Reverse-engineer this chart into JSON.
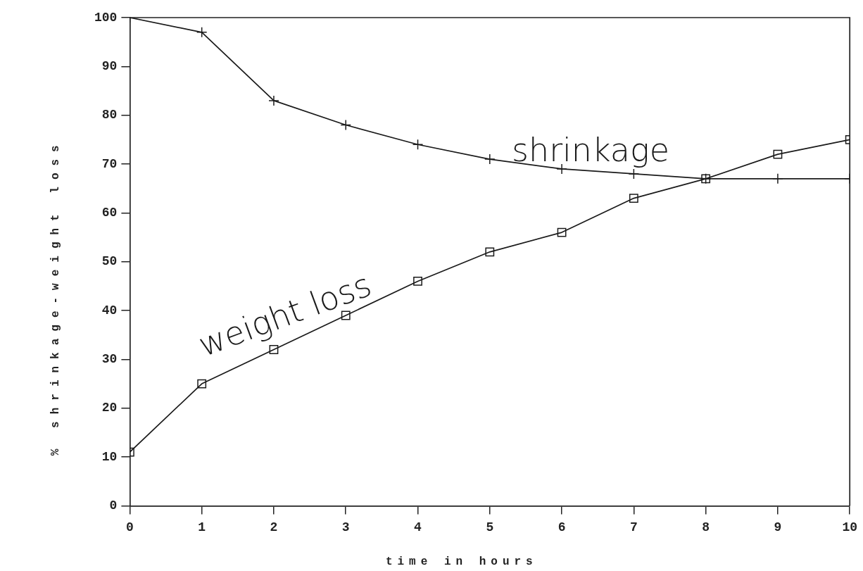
{
  "chart_data": {
    "type": "line",
    "xlabel": "time in hours",
    "ylabel": "% shrinkage-weight loss",
    "x": [
      0,
      1,
      2,
      3,
      4,
      5,
      6,
      7,
      8,
      9,
      10
    ],
    "series": [
      {
        "name": "shrinkage",
        "color": "#1a1a1a",
        "marker": "cross",
        "values": [
          100,
          97,
          83,
          78,
          74,
          71,
          69,
          68,
          67,
          67,
          67
        ]
      },
      {
        "name": "weight loss",
        "color": "#1a1a1a",
        "marker": "square",
        "values": [
          11,
          25,
          32,
          39,
          46,
          52,
          56,
          63,
          67,
          72,
          75
        ]
      }
    ],
    "xlim": [
      0,
      10
    ],
    "xticks": [
      0,
      1,
      2,
      3,
      4,
      5,
      6,
      7,
      8,
      9,
      10
    ],
    "ylim": [
      0,
      100
    ],
    "yticks": [
      0,
      10,
      20,
      30,
      40,
      50,
      60,
      70,
      80,
      90,
      100
    ]
  }
}
